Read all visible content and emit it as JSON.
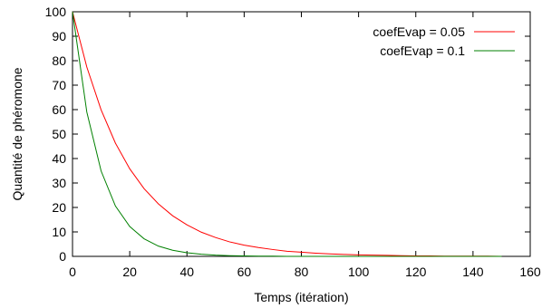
{
  "chart_data": {
    "type": "line",
    "xlabel": "Temps (itération)",
    "ylabel": "Quantité de phéromone",
    "xlim": [
      0,
      160
    ],
    "ylim": [
      0,
      100
    ],
    "xticks": [
      "0",
      "20",
      "40",
      "60",
      "80",
      "100",
      "120",
      "140",
      "160"
    ],
    "yticks": [
      "0",
      "10",
      "20",
      "30",
      "40",
      "50",
      "60",
      "70",
      "80",
      "90",
      "100"
    ],
    "grid": false,
    "legend_position": "top-right",
    "series": [
      {
        "name": "coefEvap = 0.05",
        "color": "#ff0000",
        "x": [
          0,
          5,
          10,
          15,
          20,
          25,
          30,
          35,
          40,
          45,
          50,
          55,
          60,
          65,
          70,
          75,
          80,
          85,
          90,
          95,
          100,
          105,
          110,
          115,
          120,
          125,
          130,
          135,
          140,
          145,
          150
        ],
        "values": [
          100,
          77.4,
          59.9,
          46.3,
          35.8,
          27.7,
          21.5,
          16.6,
          12.9,
          9.9,
          7.7,
          5.9,
          4.6,
          3.6,
          2.8,
          2.1,
          1.7,
          1.3,
          1.0,
          0.8,
          0.6,
          0.5,
          0.4,
          0.3,
          0.2,
          0.2,
          0.1,
          0.1,
          0.1,
          0.1,
          0.0
        ]
      },
      {
        "name": "coefEvap = 0.1",
        "color": "#008000",
        "x": [
          0,
          5,
          10,
          15,
          20,
          25,
          30,
          35,
          40,
          45,
          50,
          55,
          60,
          65,
          70,
          75,
          80,
          85,
          90,
          95,
          100,
          105,
          110,
          115,
          120,
          125,
          130,
          135,
          140,
          145,
          150
        ],
        "values": [
          100,
          59.0,
          34.9,
          20.6,
          12.2,
          7.2,
          4.2,
          2.5,
          1.5,
          0.9,
          0.5,
          0.3,
          0.2,
          0.1,
          0.1,
          0.0,
          0.0,
          0.0,
          0.0,
          0.0,
          0.0,
          0.0,
          0.0,
          0.0,
          0.0,
          0.0,
          0.0,
          0.0,
          0.0,
          0.0,
          0.0
        ]
      }
    ]
  }
}
